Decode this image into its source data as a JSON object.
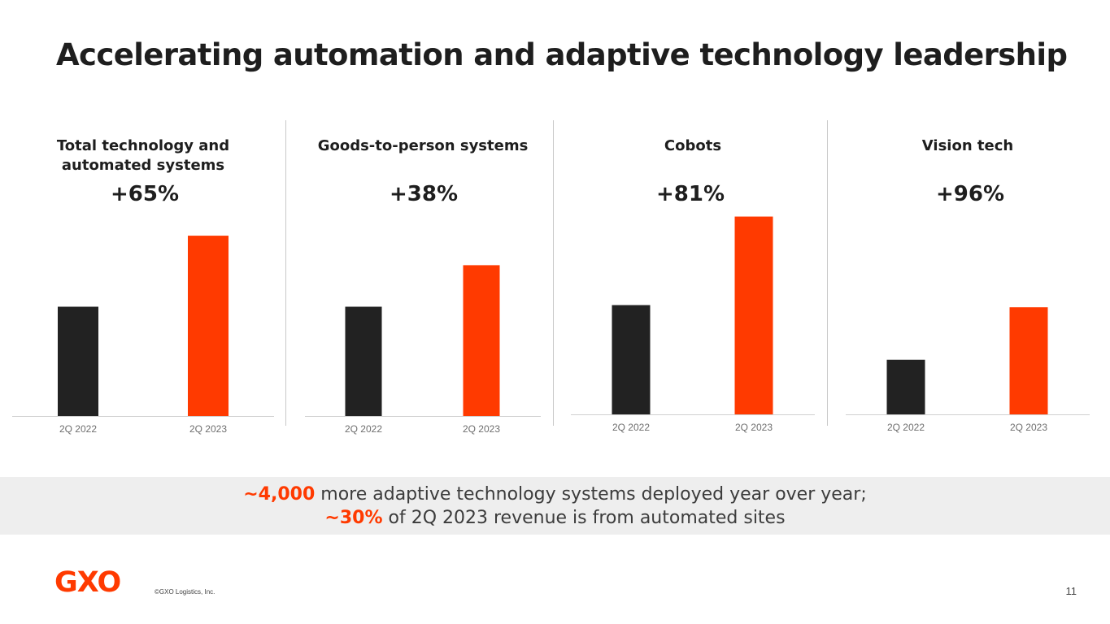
{
  "slide": {
    "title": "Accelerating automation and adaptive technology leadership",
    "page_number": "11"
  },
  "colors": {
    "prior_year": "#222222",
    "current_year": "#ff3a00",
    "axis": "#d0d0d0",
    "tick_text": "#6e6e6e"
  },
  "chart_data": [
    {
      "type": "bar",
      "title": "Total technology and automated systems",
      "growth_label": "+65%",
      "categories": [
        "2Q 2022",
        "2Q 2023"
      ],
      "values": [
        100,
        165
      ],
      "xlabel": "",
      "ylabel": "",
      "ylim": [
        0,
        200
      ]
    },
    {
      "type": "bar",
      "title": "Goods-to-person systems",
      "growth_label": "+38%",
      "categories": [
        "2Q 2022",
        "2Q 2023"
      ],
      "values": [
        100,
        138
      ],
      "xlabel": "",
      "ylabel": "",
      "ylim": [
        0,
        200
      ]
    },
    {
      "type": "bar",
      "title": "Cobots",
      "growth_label": "+81%",
      "categories": [
        "2Q 2022",
        "2Q 2023"
      ],
      "values": [
        100,
        181
      ],
      "xlabel": "",
      "ylabel": "",
      "ylim": [
        0,
        200
      ]
    },
    {
      "type": "bar",
      "title": "Vision tech",
      "growth_label": "+96%",
      "categories": [
        "2Q 2022",
        "2Q 2023"
      ],
      "values": [
        50,
        98
      ],
      "xlabel": "",
      "ylabel": "",
      "ylim": [
        0,
        200
      ]
    }
  ],
  "banner": {
    "line1_highlight": "~4,000",
    "line1_text": " more adaptive technology systems deployed year over year;",
    "line2_highlight": "~30%",
    "line2_text": " of 2Q 2023 revenue is from automated sites"
  },
  "footer": {
    "logo_text": "GXO",
    "copyright": "©GXO Logistics, Inc."
  }
}
